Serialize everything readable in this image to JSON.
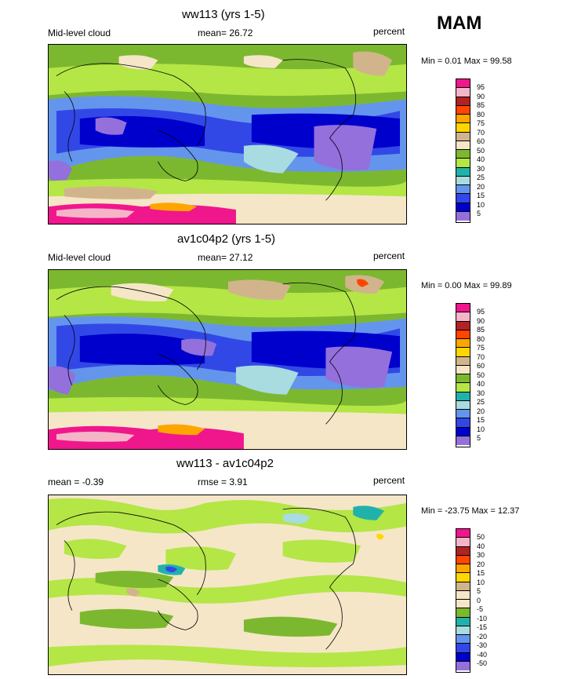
{
  "season": "MAM",
  "panels": [
    {
      "title": "ww113 (yrs 1-5)",
      "left_label": "Mid-level cloud",
      "center_label": "mean=  26.72",
      "units": "percent",
      "minmax": "Min =   0.01 Max =   99.58",
      "ticks": [
        "95",
        "90",
        "85",
        "80",
        "75",
        "70",
        "60",
        "50",
        "40",
        "30",
        "25",
        "20",
        "15",
        "10",
        "5"
      ],
      "colors": [
        "#f0168c",
        "#f5b4c8",
        "#b22222",
        "#ff4500",
        "#ffa500",
        "#ffd700",
        "#d2b48c",
        "#f5e6c8",
        "#7cb82f",
        "#b4e646",
        "#20b2aa",
        "#a8dce0",
        "#6495ed",
        "#3248e6",
        "#0000cd",
        "#9370db"
      ]
    },
    {
      "title": "av1c04p2 (yrs 1-5)",
      "left_label": "Mid-level cloud",
      "center_label": "mean=  27.12",
      "units": "percent",
      "minmax": "Min =   0.00 Max =   99.89",
      "ticks": [
        "95",
        "90",
        "85",
        "80",
        "75",
        "70",
        "60",
        "50",
        "40",
        "30",
        "25",
        "20",
        "15",
        "10",
        "5"
      ],
      "colors": [
        "#f0168c",
        "#f5b4c8",
        "#b22222",
        "#ff4500",
        "#ffa500",
        "#ffd700",
        "#d2b48c",
        "#f5e6c8",
        "#7cb82f",
        "#b4e646",
        "#20b2aa",
        "#a8dce0",
        "#6495ed",
        "#3248e6",
        "#0000cd",
        "#9370db"
      ]
    },
    {
      "title": "ww113 - av1c04p2",
      "left_label": "mean =  -0.39",
      "center_label": "rmse =    3.91",
      "units": "percent",
      "minmax": "Min = -23.75 Max =   12.37",
      "ticks": [
        "50",
        "40",
        "30",
        "20",
        "15",
        "10",
        "5",
        "0",
        "-5",
        "-10",
        "-15",
        "-20",
        "-30",
        "-40",
        "-50"
      ],
      "colors": [
        "#f0168c",
        "#f5b4c8",
        "#b22222",
        "#ff4500",
        "#ffa500",
        "#ffd700",
        "#d2b48c",
        "#f5e6c8",
        "#f5e6c8",
        "#7cb82f",
        "#20b2aa",
        "#a8dce0",
        "#6495ed",
        "#3248e6",
        "#0000cd",
        "#9370db"
      ]
    }
  ]
}
